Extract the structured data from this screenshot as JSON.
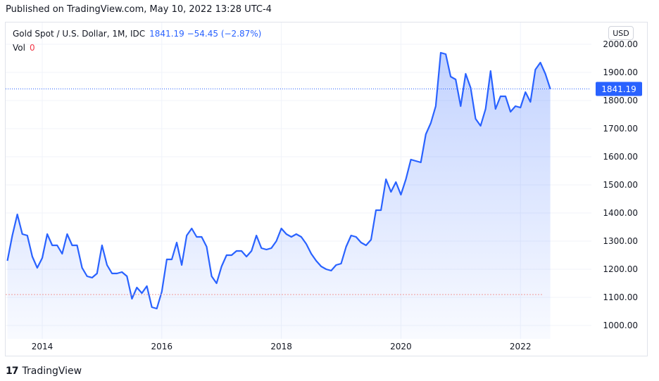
{
  "header": {
    "published": "Published on TradingView.com, May 10, 2022 13:28 UTC-4"
  },
  "legend": {
    "symbol": "Gold Spot / U.S. Dollar, 1M, IDC",
    "values": "1841.19  −54.45 (−2.87%)",
    "vol_label": "Vol",
    "vol_value": "0"
  },
  "currency_button": "USD",
  "footer": {
    "logo_glyph": "17",
    "brand": "TradingView"
  },
  "colors": {
    "line": "#2962ff",
    "area_top": "#2962ff",
    "price_label_bg": "#2962ff",
    "grid": "#f0f3fa",
    "ref_line": "#ef9a9a"
  },
  "chart_data": {
    "type": "area",
    "title": "Gold Spot / U.S. Dollar, 1M, IDC",
    "x_start": "2013-06",
    "x_step": "1 month",
    "y": [
      1230,
      1320,
      1395,
      1325,
      1320,
      1245,
      1205,
      1240,
      1325,
      1285,
      1285,
      1255,
      1325,
      1285,
      1285,
      1205,
      1175,
      1170,
      1185,
      1285,
      1215,
      1185,
      1185,
      1190,
      1175,
      1095,
      1135,
      1115,
      1140,
      1065,
      1060,
      1120,
      1235,
      1235,
      1295,
      1215,
      1320,
      1345,
      1315,
      1315,
      1280,
      1175,
      1150,
      1210,
      1250,
      1250,
      1265,
      1265,
      1245,
      1265,
      1320,
      1275,
      1270,
      1275,
      1300,
      1345,
      1325,
      1315,
      1325,
      1315,
      1290,
      1255,
      1230,
      1210,
      1200,
      1195,
      1215,
      1220,
      1280,
      1320,
      1315,
      1295,
      1285,
      1305,
      1410,
      1410,
      1520,
      1475,
      1510,
      1465,
      1520,
      1590,
      1585,
      1580,
      1680,
      1720,
      1780,
      1970,
      1965,
      1885,
      1875,
      1780,
      1895,
      1845,
      1735,
      1710,
      1770,
      1905,
      1770,
      1815,
      1815,
      1760,
      1780,
      1775,
      1830,
      1795,
      1910,
      1935,
      1895,
      1841.19
    ],
    "x_ticks": [
      "2014",
      "2016",
      "2018",
      "2020",
      "2022"
    ],
    "x_tick_positions": [
      "2014-01",
      "2016-01",
      "2018-01",
      "2020-01",
      "2022-01"
    ],
    "y_ticks": [
      "1000.00",
      "1100.00",
      "1200.00",
      "1300.00",
      "1400.00",
      "1500.00",
      "1600.00",
      "1700.00",
      "1800.00",
      "1900.00",
      "2000.00"
    ],
    "ylim": [
      980,
      2015
    ],
    "last_price": "1841.19",
    "reference_line": 1110,
    "grid": true
  }
}
